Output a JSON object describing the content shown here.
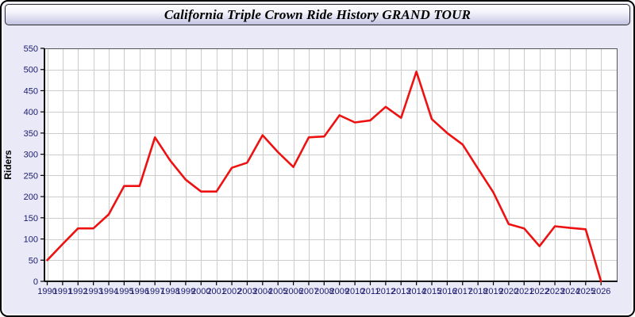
{
  "window": {
    "background_color": "#e9e9f8",
    "border_color": "#000000"
  },
  "header": {
    "title": "California Triple Crown Ride History GRAND TOUR"
  },
  "chart_data": {
    "type": "line",
    "title": "California Triple Crown Ride History GRAND TOUR",
    "xlabel": "",
    "ylabel": "Riders",
    "categories": [
      "1990",
      "1991",
      "1992",
      "1993",
      "1994",
      "1995",
      "1996",
      "1997",
      "1998",
      "1999",
      "2000",
      "2001",
      "2002",
      "2003",
      "2004",
      "2005",
      "2006",
      "2007",
      "2008",
      "2009",
      "2010",
      "2011",
      "2012",
      "2013",
      "2014",
      "2015",
      "2016",
      "2017",
      "2018",
      "2019",
      "2020",
      "2021",
      "2022",
      "2023",
      "2024",
      "2025",
      "2026"
    ],
    "series": [
      {
        "name": "Riders",
        "values": [
          50,
          88,
          125,
          125,
          158,
          225,
          225,
          340,
          285,
          240,
          212,
          212,
          268,
          280,
          345,
          305,
          270,
          340,
          342,
          392,
          375,
          380,
          412,
          386,
          495,
          383,
          350,
          323,
          266,
          210,
          135,
          125,
          83,
          130,
          126,
          123,
          0
        ]
      }
    ],
    "ylim": [
      0,
      550
    ],
    "ytick_step": 50,
    "grid": true,
    "legend_position": "none",
    "line_color": "#ee1111",
    "grid_color": "#cccccc",
    "plot_background": "#ffffff",
    "tick_label_color": "#1b1b6e",
    "axis_color": "#000000"
  }
}
